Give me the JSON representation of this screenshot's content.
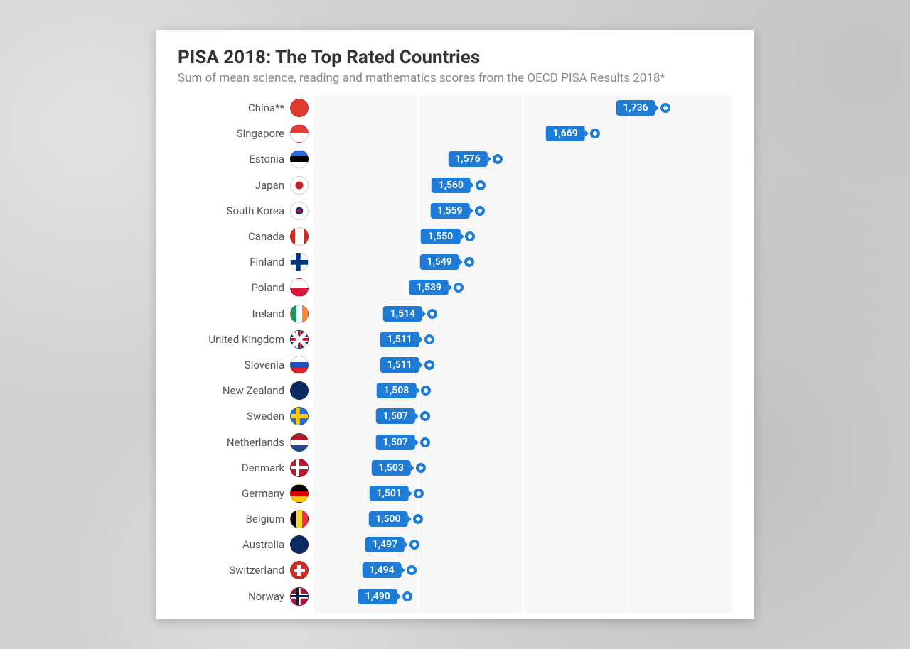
{
  "title": "PISA 2018: The Top Rated Countries",
  "subtitle": "Sum of mean science, reading and mathematics scores from the OECD PISA Results 2018*",
  "chart": {
    "type": "dot",
    "xlim": [
      1400,
      1800
    ],
    "grid_step": 100,
    "background_color": "#f7f7f7",
    "gridline_color": "#ffffff",
    "accent_color": "#1f7cd6",
    "label_color": "#555555",
    "title_color": "#333333",
    "subtitle_color": "#8a8a8a",
    "title_fontsize": 26,
    "subtitle_fontsize": 17,
    "label_fontsize": 15,
    "badge_fontsize": 14,
    "row_height": 36.2,
    "dot_size": 14,
    "dot_border": 4,
    "rows": [
      {
        "label": "China**",
        "value": 1736,
        "display": "1,736",
        "flag_css": "background:#e03a2f;"
      },
      {
        "label": "Singapore",
        "value": 1669,
        "display": "1,669",
        "flag_css": "background:linear-gradient(#e43b3b 0 50%, #ffffff 50% 100%);"
      },
      {
        "label": "Estonia",
        "value": 1576,
        "display": "1,576",
        "flag_css": "background:linear-gradient(#2a6bd4 0 33%, #000000 33% 66%, #ffffff 66% 100%);"
      },
      {
        "label": "Japan",
        "value": 1560,
        "display": "1,560",
        "flag_css": "background:radial-gradient(circle at 50% 50%, #c81f2e 0 32%, #ffffff 34% 100%);"
      },
      {
        "label": "South Korea",
        "value": 1559,
        "display": "1,559",
        "flag_css": "background:radial-gradient(circle at 50% 50%, #c60c30 0 18%, #003478 18% 30%, #ffffff 32% 100%);"
      },
      {
        "label": "Canada",
        "value": 1550,
        "display": "1,550",
        "flag_css": "background:linear-gradient(90deg,#d52b1e 0 25%, #ffffff 25% 75%, #d52b1e 75% 100%);"
      },
      {
        "label": "Finland",
        "value": 1549,
        "display": "1,549",
        "flag_css": "background:#ffffff; background-image:linear-gradient(#003580,#003580),linear-gradient(#003580,#003580); background-size:100% 28%, 28% 100%; background-position:0 50%, 38% 0; background-repeat:no-repeat;"
      },
      {
        "label": "Poland",
        "value": 1539,
        "display": "1,539",
        "flag_css": "background:linear-gradient(#ffffff 0 50%, #dc143c 50% 100%);"
      },
      {
        "label": "Ireland",
        "value": 1514,
        "display": "1,514",
        "flag_css": "background:linear-gradient(90deg,#169b62 0 33%, #ffffff 33% 66%, #ff883e 66% 100%);"
      },
      {
        "label": "United Kingdom",
        "value": 1511,
        "display": "1,511",
        "flag_css": "background:#1d3e8f; background-image:linear-gradient(45deg,transparent 42%,#fff 42% 58%,transparent 58%),linear-gradient(-45deg,transparent 42%,#fff 42% 58%,transparent 58%),linear-gradient(#c8102e,#c8102e),linear-gradient(#c8102e,#c8102e),linear-gradient(#fff,#fff),linear-gradient(#fff,#fff); background-size:100% 100%,100% 100%,100% 16%,16% 100%,100% 30%,30% 100%; background-position:0 0,0 0,0 50%,50% 0,0 50%,50% 0; background-repeat:no-repeat;"
      },
      {
        "label": "Slovenia",
        "value": 1511,
        "display": "1,511",
        "flag_css": "background:linear-gradient(#ffffff 0 33%, #1e4fbb 33% 66%, #e22028 66% 100%);"
      },
      {
        "label": "New Zealand",
        "value": 1508,
        "display": "1,508",
        "flag_css": "background:#0b2a63;"
      },
      {
        "label": "Sweden",
        "value": 1507,
        "display": "1,507",
        "flag_css": "background:#2a6bd4; background-image:linear-gradient(#fecc00,#fecc00),linear-gradient(#fecc00,#fecc00); background-size:100% 24%, 24% 100%; background-position:0 50%, 38% 0; background-repeat:no-repeat;"
      },
      {
        "label": "Netherlands",
        "value": 1507,
        "display": "1,507",
        "flag_css": "background:linear-gradient(#ae1c28 0 33%, #ffffff 33% 66%, #21468b 66% 100%);"
      },
      {
        "label": "Denmark",
        "value": 1503,
        "display": "1,503",
        "flag_css": "background:#c8102e; background-image:linear-gradient(#fff,#fff),linear-gradient(#fff,#fff); background-size:100% 22%, 22% 100%; background-position:0 50%, 38% 0; background-repeat:no-repeat;"
      },
      {
        "label": "Germany",
        "value": 1501,
        "display": "1,501",
        "flag_css": "background:linear-gradient(#000000 0 33%, #dd0000 33% 66%, #ffce00 66% 100%);"
      },
      {
        "label": "Belgium",
        "value": 1500,
        "display": "1,500",
        "flag_css": "background:linear-gradient(90deg,#000000 0 33%, #fdda24 33% 66%, #ef3340 66% 100%);"
      },
      {
        "label": "Australia",
        "value": 1497,
        "display": "1,497",
        "flag_css": "background:#0b2a63;"
      },
      {
        "label": "Switzerland",
        "value": 1494,
        "display": "1,494",
        "flag_css": "background:#d52b1e; background-image:linear-gradient(#fff,#fff),linear-gradient(#fff,#fff); background-size:68% 22%, 22% 68%; background-position:50% 50%, 50% 50%; background-repeat:no-repeat;"
      },
      {
        "label": "Norway",
        "value": 1490,
        "display": "1,490",
        "flag_css": "background:#ba0c2f; background-image:linear-gradient(#00205b,#00205b),linear-gradient(#00205b,#00205b),linear-gradient(#fff,#fff),linear-gradient(#fff,#fff); background-size:100% 14%,14% 100%,100% 28%,28% 100%; background-position:0 50%,38% 0,0 50%,38% 0; background-repeat:no-repeat;"
      }
    ]
  }
}
